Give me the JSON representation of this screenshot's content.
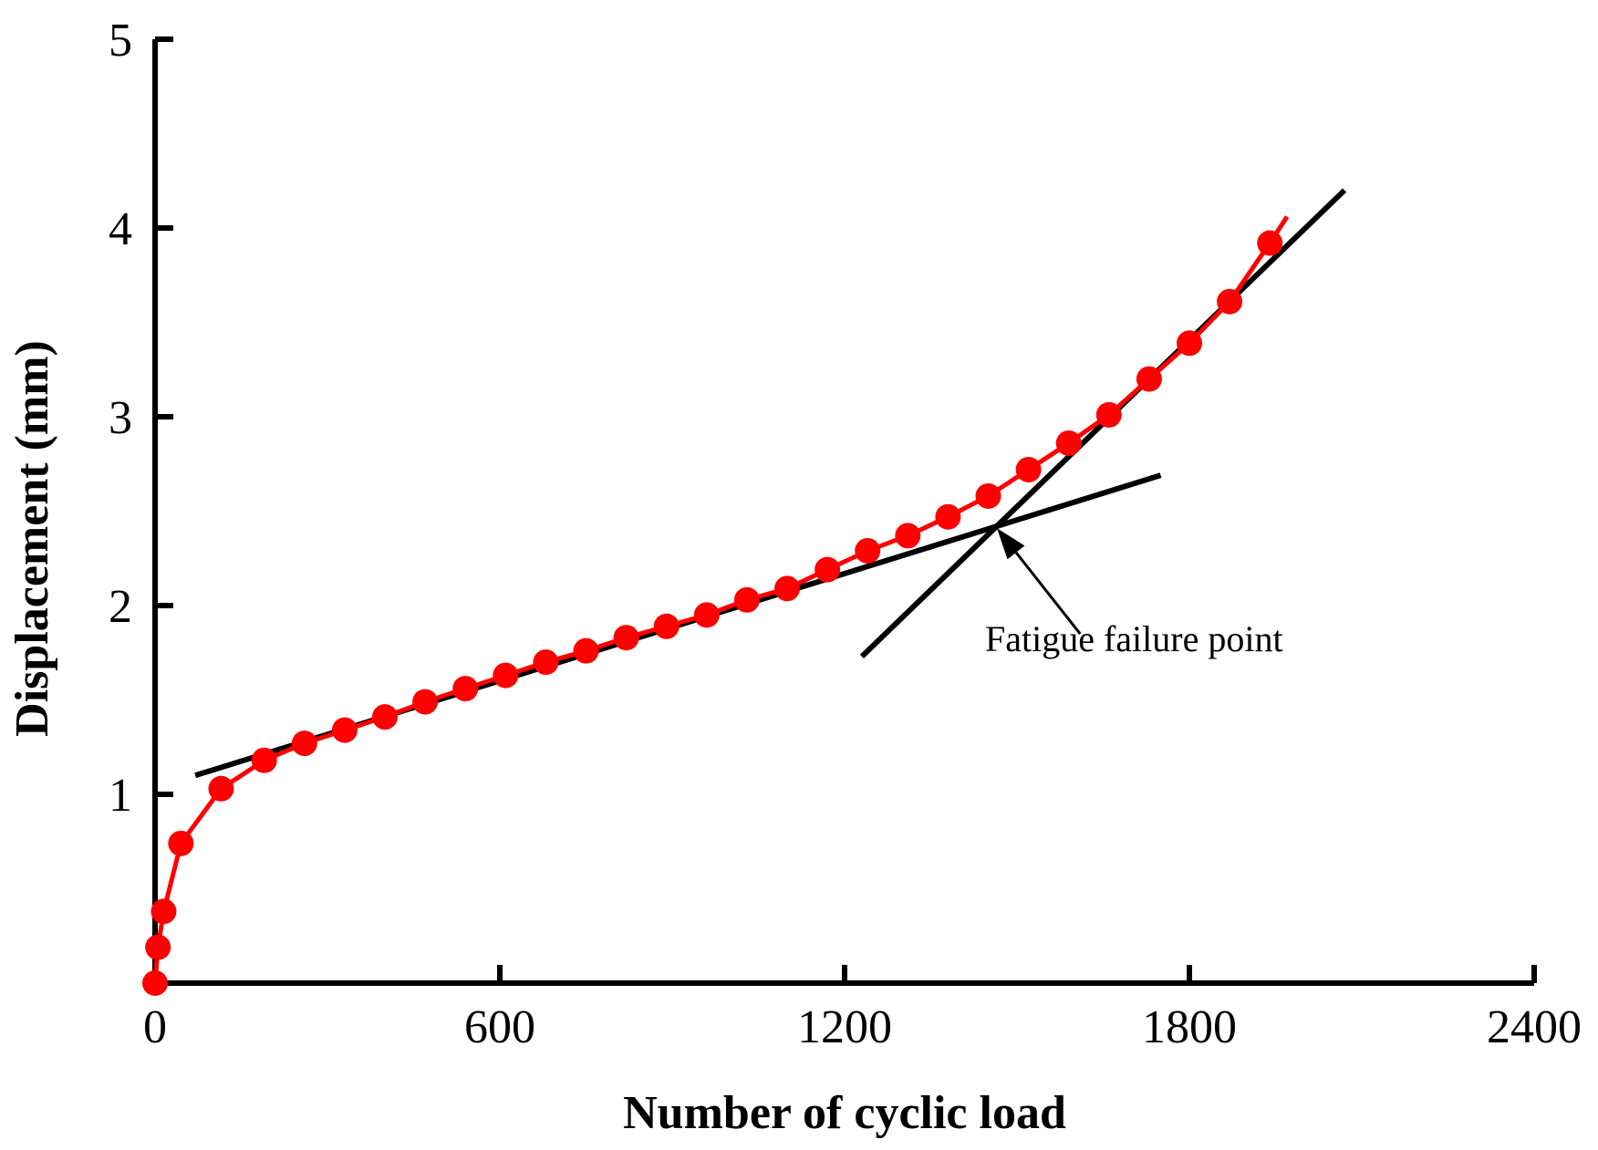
{
  "chart_data": {
    "type": "line",
    "title": "",
    "xlabel": "Number of cyclic load",
    "ylabel": "Displacement (mm)",
    "xlim": [
      0,
      2400
    ],
    "ylim": [
      0,
      5
    ],
    "xticks": [
      0,
      600,
      1200,
      1800,
      2400
    ],
    "xtick_labels": [
      "0",
      "600",
      "1200",
      "1800",
      "2400"
    ],
    "yticks": [
      1,
      2,
      3,
      4,
      5
    ],
    "ytick_labels": [
      "1",
      "2",
      "3",
      "4",
      "5"
    ],
    "grid": false,
    "series": [
      {
        "name": "Displacement",
        "color": "#ff0000",
        "marker": "circle",
        "x": [
          0,
          5,
          15,
          45,
          115,
          190,
          260,
          330,
          400,
          470,
          540,
          610,
          680,
          750,
          820,
          890,
          960,
          1030,
          1100,
          1170,
          1240,
          1310,
          1380,
          1450,
          1520,
          1590,
          1660,
          1730,
          1800,
          1870,
          1940
        ],
        "y": [
          0.0,
          0.19,
          0.38,
          0.74,
          1.03,
          1.18,
          1.27,
          1.34,
          1.41,
          1.49,
          1.56,
          1.63,
          1.7,
          1.76,
          1.83,
          1.89,
          1.95,
          2.03,
          2.09,
          2.19,
          2.29,
          2.37,
          2.47,
          2.58,
          2.72,
          2.86,
          3.01,
          3.2,
          3.39,
          3.61,
          3.92
        ],
        "curve_end": [
          1970,
          4.06
        ]
      }
    ],
    "fit_lines": [
      {
        "name": "initial-slope-line",
        "x": [
          70,
          1750
        ],
        "y": [
          1.1,
          2.69
        ],
        "color": "#000000"
      },
      {
        "name": "final-slope-line",
        "x": [
          1230,
          2070
        ],
        "y": [
          1.73,
          4.2
        ],
        "color": "#000000"
      }
    ],
    "annotation": {
      "text": "Fatigue failure point",
      "point": [
        1465,
        2.41
      ],
      "text_anchor": [
        1610,
        1.85
      ]
    }
  }
}
